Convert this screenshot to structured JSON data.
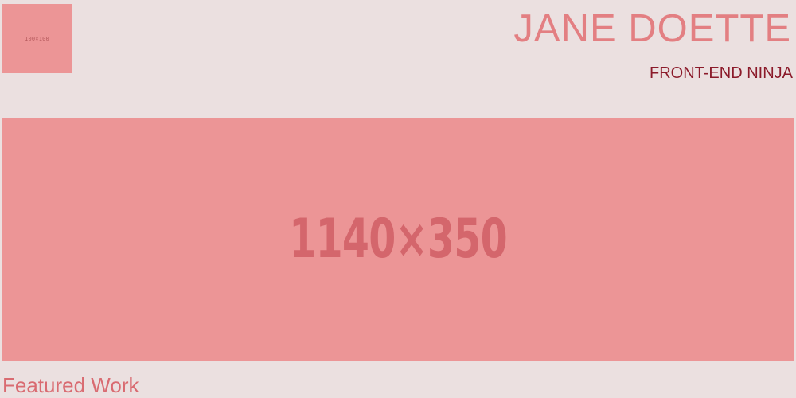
{
  "header": {
    "logo_label": "100×100",
    "name": "JANE DOETTE",
    "tagline": "FRONT-END NINJA"
  },
  "hero": {
    "label": "1140×350"
  },
  "featured": {
    "title": "Featured Work"
  },
  "colors": {
    "background": "#ebe0e0",
    "placeholder_fill": "#ec9596",
    "placeholder_text": "#d4666c",
    "name_color": "#e37f82",
    "tagline_color": "#8b1a2a",
    "accent": "#d96b71"
  }
}
